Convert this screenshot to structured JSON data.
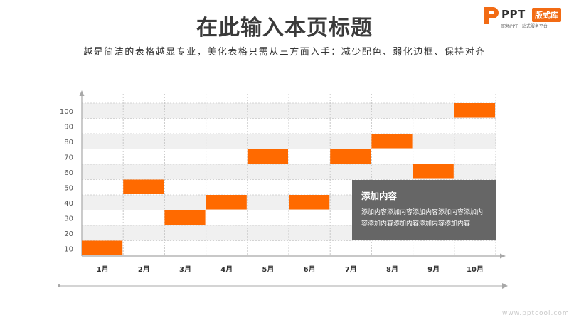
{
  "header": {
    "title": "在此输入本页标题",
    "subtitle": "越是简洁的表格越显专业，美化表格只需从三方面入手：减少配色、弱化边框、保持对齐"
  },
  "logo": {
    "word": "PPT",
    "tag": "版式库",
    "slogan": "职场PPT一站式服务平台"
  },
  "callout": {
    "title": "添加内容",
    "body": "添加内容添加内容添加内容添加内容添加内容添加内容添加内容添加内容添加内容"
  },
  "watermark": "www.pptcool.com",
  "colors": {
    "accent": "#ff6a00",
    "band": "#f0f0f0",
    "grid": "#c8c8c8",
    "axis": "#a8a8a8",
    "callout": "#666666"
  },
  "chart_data": {
    "type": "bar",
    "categories": [
      "1月",
      "2月",
      "3月",
      "4月",
      "5月",
      "6月",
      "7月",
      "8月",
      "9月",
      "10月"
    ],
    "values": [
      10,
      50,
      30,
      40,
      70,
      40,
      70,
      80,
      60,
      100
    ],
    "yticks": [
      10,
      20,
      30,
      40,
      50,
      60,
      70,
      80,
      90,
      100
    ],
    "ylim": [
      5,
      105
    ],
    "title": "",
    "xlabel": "",
    "ylabel": "",
    "grid": true,
    "legend": "none"
  }
}
